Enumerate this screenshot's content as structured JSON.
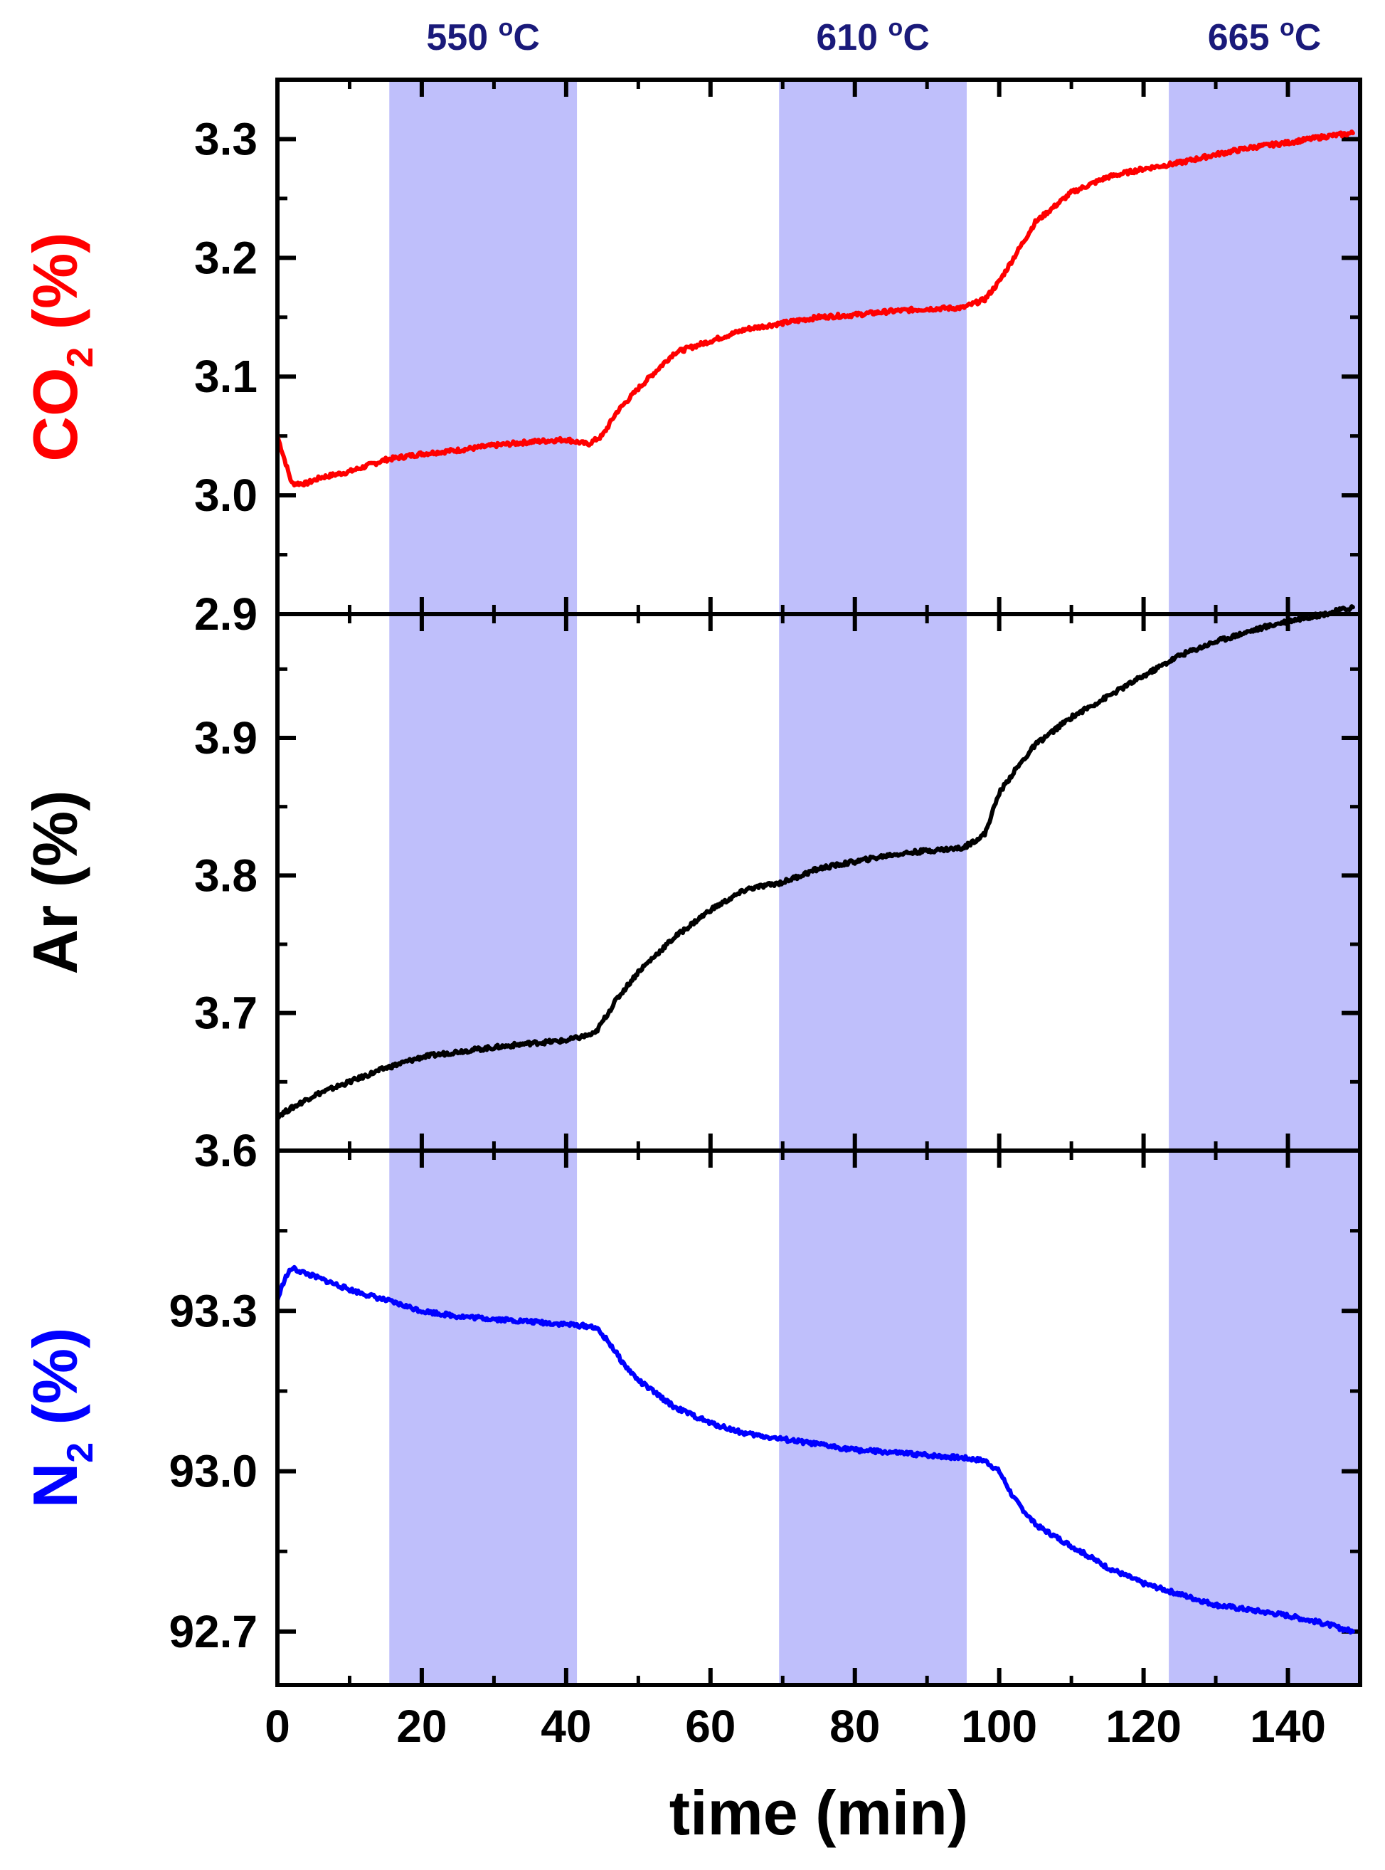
{
  "colors": {
    "co2": "#ff0000",
    "ar": "#000000",
    "n2": "#0000ff",
    "band": "#bfbffb",
    "band_label": "#1a1a7a",
    "axis": "#000000"
  },
  "chart_data": [
    {
      "type": "line",
      "panel": "top",
      "ylabel_main": "CO",
      "ylabel_sub": "2",
      "ylabel_unit": " (%)",
      "ylim": [
        2.9,
        3.35
      ],
      "yticks": [
        2.9,
        3.0,
        3.1,
        3.2,
        3.3
      ],
      "ytick_labels": [
        "2.9",
        "3.0",
        "3.1",
        "3.2",
        "3.3"
      ],
      "x": [
        0,
        1,
        2,
        4,
        6,
        10,
        15,
        20,
        25,
        30,
        35,
        40,
        43,
        45,
        47,
        50,
        55,
        60,
        65,
        70,
        75,
        80,
        85,
        90,
        95,
        98,
        100,
        102,
        105,
        110,
        115,
        120,
        125,
        130,
        135,
        140,
        145,
        149
      ],
      "y": [
        3.05,
        3.03,
        3.01,
        3.01,
        3.015,
        3.02,
        3.03,
        3.035,
        3.038,
        3.042,
        3.045,
        3.047,
        3.043,
        3.05,
        3.07,
        3.09,
        3.12,
        3.13,
        3.14,
        3.145,
        3.15,
        3.152,
        3.155,
        3.157,
        3.158,
        3.165,
        3.18,
        3.2,
        3.23,
        3.255,
        3.268,
        3.275,
        3.28,
        3.287,
        3.293,
        3.297,
        3.302,
        3.305
      ]
    },
    {
      "type": "line",
      "panel": "middle",
      "ylabel_main": "Ar",
      "ylabel_sub": "",
      "ylabel_unit": " (%)",
      "ylim": [
        3.6,
        3.99
      ],
      "yticks": [
        3.6,
        3.7,
        3.8,
        3.9
      ],
      "ytick_labels": [
        "3.6",
        "3.7",
        "3.8",
        "3.9"
      ],
      "x": [
        0,
        5,
        10,
        15,
        20,
        25,
        30,
        35,
        40,
        44,
        47,
        50,
        55,
        60,
        65,
        70,
        75,
        80,
        85,
        90,
        95,
        98,
        100,
        102,
        105,
        110,
        115,
        120,
        125,
        130,
        135,
        140,
        145,
        149
      ],
      "y": [
        3.625,
        3.64,
        3.65,
        3.66,
        3.668,
        3.672,
        3.675,
        3.678,
        3.68,
        3.685,
        3.71,
        3.73,
        3.755,
        3.775,
        3.79,
        3.795,
        3.805,
        3.81,
        3.815,
        3.818,
        3.82,
        3.83,
        3.86,
        3.875,
        3.895,
        3.915,
        3.93,
        3.945,
        3.96,
        3.97,
        3.978,
        3.985,
        3.99,
        3.995
      ]
    },
    {
      "type": "line",
      "panel": "bottom",
      "ylabel_main": "N",
      "ylabel_sub": "2",
      "ylabel_unit": " (%)",
      "ylim": [
        92.6,
        93.6
      ],
      "yticks": [
        92.7,
        93.0,
        93.3
      ],
      "ytick_labels": [
        "92.7",
        "93.0",
        "93.3"
      ],
      "xlabel": "time (min)",
      "xlim": [
        0,
        150
      ],
      "xticks": [
        0,
        20,
        40,
        60,
        80,
        100,
        120,
        140
      ],
      "xtick_labels": [
        "0",
        "20",
        "40",
        "60",
        "80",
        "100",
        "120",
        "140"
      ],
      "x": [
        0,
        1,
        2,
        4,
        6,
        10,
        15,
        20,
        25,
        30,
        35,
        40,
        44,
        46,
        48,
        50,
        55,
        60,
        65,
        70,
        75,
        80,
        85,
        90,
        95,
        98,
        100,
        102,
        105,
        110,
        115,
        120,
        125,
        130,
        135,
        140,
        145,
        149
      ],
      "y": [
        93.32,
        93.36,
        93.38,
        93.37,
        93.36,
        93.34,
        93.32,
        93.3,
        93.29,
        93.285,
        93.28,
        93.275,
        93.27,
        93.24,
        93.2,
        93.17,
        93.12,
        93.09,
        93.07,
        93.06,
        93.05,
        93.04,
        93.035,
        93.03,
        93.025,
        93.02,
        93.0,
        92.95,
        92.9,
        92.86,
        92.82,
        92.79,
        92.77,
        92.75,
        92.74,
        92.73,
        92.715,
        92.7
      ]
    }
  ],
  "bands": [
    {
      "x_start": 15.5,
      "x_end": 41.5,
      "label": "550 °C",
      "label_main": "550 ",
      "label_sup": "o",
      "label_unit": "C"
    },
    {
      "x_start": 69.5,
      "x_end": 95.5,
      "label": "610 °C",
      "label_main": "610 ",
      "label_sup": "o",
      "label_unit": "C"
    },
    {
      "x_start": 123.5,
      "x_end": 150,
      "label": "665 °C",
      "label_main": "665 ",
      "label_sup": "o",
      "label_unit": "C"
    }
  ]
}
